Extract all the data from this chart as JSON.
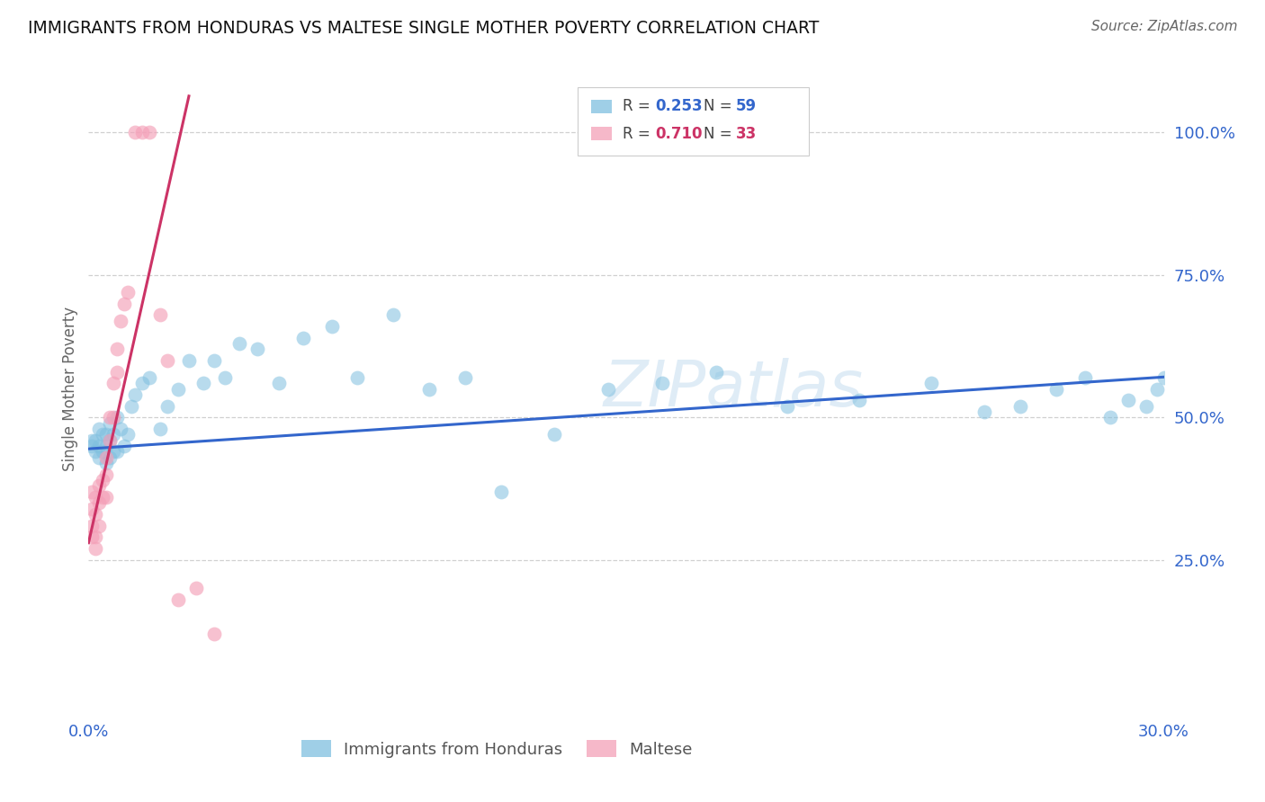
{
  "title": "IMMIGRANTS FROM HONDURAS VS MALTESE SINGLE MOTHER POVERTY CORRELATION CHART",
  "source": "Source: ZipAtlas.com",
  "ylabel": "Single Mother Poverty",
  "watermark": "ZIPatlas",
  "xlim": [
    0.0,
    0.3
  ],
  "ylim": [
    -0.02,
    1.12
  ],
  "xticks": [
    0.0,
    0.05,
    0.1,
    0.15,
    0.2,
    0.25,
    0.3
  ],
  "xtick_labels": [
    "0.0%",
    "",
    "",
    "",
    "",
    "",
    "30.0%"
  ],
  "yticks": [
    0.25,
    0.5,
    0.75,
    1.0
  ],
  "ytick_labels": [
    "25.0%",
    "50.0%",
    "75.0%",
    "100.0%"
  ],
  "blue_color": "#7fbfdf",
  "pink_color": "#f4a0b8",
  "blue_line_color": "#3366cc",
  "pink_line_color": "#cc3366",
  "legend_label1": "Immigrants from Honduras",
  "legend_label2": "Maltese",
  "blue_x": [
    0.001,
    0.001,
    0.002,
    0.002,
    0.003,
    0.003,
    0.003,
    0.004,
    0.004,
    0.005,
    0.005,
    0.005,
    0.006,
    0.006,
    0.006,
    0.007,
    0.007,
    0.008,
    0.008,
    0.009,
    0.01,
    0.011,
    0.012,
    0.013,
    0.015,
    0.017,
    0.02,
    0.022,
    0.025,
    0.028,
    0.032,
    0.035,
    0.038,
    0.042,
    0.047,
    0.053,
    0.06,
    0.068,
    0.075,
    0.085,
    0.095,
    0.105,
    0.115,
    0.13,
    0.145,
    0.16,
    0.175,
    0.195,
    0.215,
    0.235,
    0.25,
    0.26,
    0.27,
    0.278,
    0.285,
    0.29,
    0.295,
    0.298,
    0.3
  ],
  "blue_y": [
    0.45,
    0.46,
    0.44,
    0.46,
    0.43,
    0.45,
    0.48,
    0.44,
    0.47,
    0.42,
    0.45,
    0.47,
    0.43,
    0.46,
    0.49,
    0.44,
    0.47,
    0.44,
    0.5,
    0.48,
    0.45,
    0.47,
    0.52,
    0.54,
    0.56,
    0.57,
    0.48,
    0.52,
    0.55,
    0.6,
    0.56,
    0.6,
    0.57,
    0.63,
    0.62,
    0.56,
    0.64,
    0.66,
    0.57,
    0.68,
    0.55,
    0.57,
    0.37,
    0.47,
    0.55,
    0.56,
    0.58,
    0.52,
    0.53,
    0.56,
    0.51,
    0.52,
    0.55,
    0.57,
    0.5,
    0.53,
    0.52,
    0.55,
    0.57
  ],
  "pink_x": [
    0.001,
    0.001,
    0.001,
    0.001,
    0.002,
    0.002,
    0.002,
    0.002,
    0.003,
    0.003,
    0.003,
    0.004,
    0.004,
    0.005,
    0.005,
    0.005,
    0.006,
    0.006,
    0.007,
    0.007,
    0.008,
    0.008,
    0.009,
    0.01,
    0.011,
    0.013,
    0.015,
    0.017,
    0.02,
    0.022,
    0.025,
    0.03,
    0.035
  ],
  "pink_y": [
    0.37,
    0.34,
    0.31,
    0.29,
    0.36,
    0.33,
    0.29,
    0.27,
    0.38,
    0.35,
    0.31,
    0.39,
    0.36,
    0.43,
    0.4,
    0.36,
    0.5,
    0.46,
    0.56,
    0.5,
    0.62,
    0.58,
    0.67,
    0.7,
    0.72,
    1.0,
    1.0,
    1.0,
    0.68,
    0.6,
    0.18,
    0.2,
    0.12
  ],
  "blue_slope": 0.42,
  "blue_intercept": 0.445,
  "pink_slope": 28.0,
  "pink_intercept": 0.28,
  "pink_line_x_end": 0.028
}
